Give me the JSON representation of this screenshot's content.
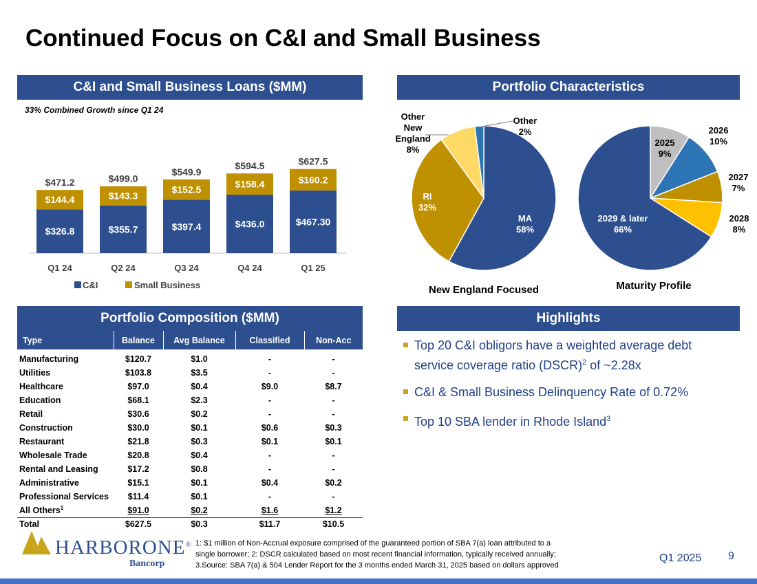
{
  "page": {
    "title": "Continued Focus on C&I and Small Business",
    "period": "Q1 2025",
    "page_number": "9"
  },
  "loans_panel": {
    "header": "C&I and Small Business Loans ($MM)",
    "growth_note": "33% Combined Growth since Q1 24"
  },
  "portfolio_panel": {
    "header": "Portfolio Characteristics"
  },
  "composition_panel": {
    "header": "Portfolio Composition ($MM)"
  },
  "highlights_panel": {
    "header": "Highlights",
    "item1_a": "Top 20 C&I obligors have a weighted average debt service coverage ratio (DSCR)",
    "item1_sup": "2",
    "item1_b": " of ~2.28x",
    "item2": "C&I & Small Business Delinquency Rate of 0.72%",
    "item3_a": "Top 10 SBA lender in Rhode Island",
    "item3_sup": "3"
  },
  "chart_data": [
    {
      "type": "bar",
      "stacked": true,
      "title": "C&I and Small Business Loans ($MM)",
      "categories": [
        "Q1 24",
        "Q2 24",
        "Q3 24",
        "Q4 24",
        "Q1 25"
      ],
      "series": [
        {
          "name": "C&I",
          "color": "#2e4f8f",
          "values": [
            326.8,
            355.7,
            397.4,
            436.0,
            467.3
          ],
          "labels": [
            "$326.8",
            "$355.7",
            "$397.4",
            "$436.0",
            "$467.30"
          ]
        },
        {
          "name": "Small Business",
          "color": "#bf9000",
          "values": [
            144.4,
            143.3,
            152.5,
            158.4,
            160.2
          ],
          "labels": [
            "$144.4",
            "$143.3",
            "$152.5",
            "$158.4",
            "$160.2"
          ]
        }
      ],
      "totals": [
        "$471.2",
        "$499.0",
        "$549.9",
        "$594.5",
        "$627.5"
      ],
      "ylim": [
        0,
        700
      ],
      "legend": "bottom-left"
    },
    {
      "type": "pie",
      "title": "New England Focused",
      "slices": [
        {
          "label": "MA",
          "value": 58,
          "text": "58%",
          "color": "#2e4f8f"
        },
        {
          "label": "RI",
          "value": 32,
          "text": "32%",
          "color": "#bf9000"
        },
        {
          "label": "Other New England",
          "value": 8,
          "text": "8%",
          "color": "#ffd966"
        },
        {
          "label": "Other",
          "value": 2,
          "text": "2%",
          "color": "#2e75b6"
        }
      ]
    },
    {
      "type": "pie",
      "title": "Maturity Profile",
      "slices": [
        {
          "label": "2025",
          "value": 9,
          "text": "9%",
          "color": "#bfbfbf"
        },
        {
          "label": "2026",
          "value": 10,
          "text": "10%",
          "color": "#2e75b6"
        },
        {
          "label": "2027",
          "value": 7,
          "text": "7%",
          "color": "#bf9000"
        },
        {
          "label": "2028",
          "value": 8,
          "text": "8%",
          "color": "#ffc000"
        },
        {
          "label": "2029 & later",
          "value": 66,
          "text": "66%",
          "color": "#2e4f8f"
        }
      ]
    }
  ],
  "composition_table": {
    "columns": [
      "Type",
      "Balance",
      "Avg Balance",
      "Classified",
      "Non-Acc"
    ],
    "rows": [
      [
        "Manufacturing",
        "$120.7",
        "$1.0",
        "-",
        "-"
      ],
      [
        "Utilities",
        "$103.8",
        "$3.5",
        "-",
        "-"
      ],
      [
        "Healthcare",
        "$97.0",
        "$0.4",
        "$9.0",
        "$8.7"
      ],
      [
        "Education",
        "$68.1",
        "$2.3",
        "-",
        "-"
      ],
      [
        "Retail",
        "$30.6",
        "$0.2",
        "-",
        "-"
      ],
      [
        "Construction",
        "$30.0",
        "$0.1",
        "$0.6",
        "$0.3"
      ],
      [
        "Restaurant",
        "$21.8",
        "$0.3",
        "$0.1",
        "$0.1"
      ],
      [
        "Wholesale Trade",
        "$20.8",
        "$0.4",
        "-",
        "-"
      ],
      [
        "Rental and Leasing",
        "$17.2",
        "$0.8",
        "-",
        "-"
      ],
      [
        "Administrative",
        "$15.1",
        "$0.1",
        "$0.4",
        "$0.2"
      ],
      [
        "Professional Services",
        "$11.4",
        "$0.1",
        "-",
        "-"
      ]
    ],
    "others": [
      "All Others",
      "$91.0",
      "$0.2",
      "$1.6",
      "$1.2"
    ],
    "others_sup": "1",
    "total": [
      "Total",
      "$627.5",
      "$0.3",
      "$11.7",
      "$10.5"
    ]
  },
  "logo": {
    "name": "HarborOne",
    "wordmark": "HARBORONE",
    "registered": "®",
    "sub": "Bancorp"
  },
  "footnote": {
    "line1": "1: $1 million of Non-Accrual exposure comprised of the guaranteed portion of SBA 7(a) loan attributed to a",
    "line2": "single borrower; 2: DSCR calculated based on most recent financial information, typically received annually;",
    "line3": "3.Source: SBA 7(a) & 504 Lender Report for the 3 months ended March 31, 2025 based on dollars approved"
  }
}
